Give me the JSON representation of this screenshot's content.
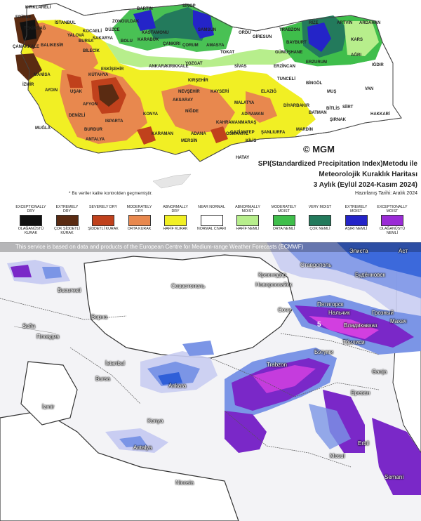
{
  "top": {
    "cities": [
      "KIRKLARELİ",
      "EDİRNE",
      "TEKİRDAĞ",
      "İSTANBUL",
      "KOCAELİ",
      "YALOVA",
      "SAKARYA",
      "DÜZCE",
      "ZONGULDAK",
      "BARTIN",
      "KASTAMONU",
      "SİNOP",
      "SAMSUN",
      "ORDU",
      "GİRESUN",
      "TRABZON",
      "RİZE",
      "ARTVİN",
      "ARDAHAN",
      "KARS",
      "BAYBURT",
      "GÜMÜŞHANE",
      "ERZURUM",
      "AĞRI",
      "IĞDIR",
      "ERZİNCAN",
      "TUNCELİ",
      "BİNGÖL",
      "MUŞ",
      "VAN",
      "BİTLİS",
      "SİİRT",
      "HAKKARİ",
      "ŞIRNAK",
      "BATMAN",
      "DİYARBAKIR",
      "MARDİN",
      "ŞANLIURFA",
      "ADIYAMAN",
      "MALATYA",
      "ELAZIĞ",
      "SİVAS",
      "TOKAT",
      "AMASYA",
      "ÇORUM",
      "YOZGAT",
      "KIRIKKALE",
      "ANKARA",
      "ÇANKIRI",
      "KARABÜK",
      "BOLU",
      "BİLECİK",
      "BURSA",
      "BALIKESİR",
      "ÇANAKKALE",
      "MANİSA",
      "İZMİR",
      "AYDIN",
      "MUĞLA",
      "DENİZLİ",
      "UŞAK",
      "KÜTAHYA",
      "ESKİŞEHİR",
      "AFYON",
      "ISPARTA",
      "BURDUR",
      "ANTALYA",
      "KONYA",
      "KARAMAN",
      "MERSİN",
      "ADANA",
      "OSMANİYE",
      "HATAY",
      "KİLİS",
      "GAZİANTEP",
      "KAHRAMANMARAŞ",
      "NİĞDE",
      "AKSARAY",
      "NEVŞEHİR",
      "KIRŞEHİR",
      "KAYSERİ"
    ],
    "logo": "© MGM",
    "title_line1": "SPI(Standardized Precipitation Index)Metodu ile",
    "title_line2": "Meteorolojik Kuraklık Haritası",
    "title_line3": "3 Aylık (Eylül 2024-Kasım 2024)",
    "date": "Hazırlanış Tarihi: Aralık 2024",
    "note": "* Bu veriler kalite kontrolden geçmemiştir.",
    "legend": [
      {
        "en": "EXCEPTIONALLY DRY",
        "tr": "OLAĞANÜSTÜ KURAK",
        "color": "#111111"
      },
      {
        "en": "EXTREMELY DRY",
        "tr": "ÇOK ŞİDDETLİ KURAK",
        "color": "#5a2b12"
      },
      {
        "en": "SEVERELY DRY",
        "tr": "ŞİDDETLİ KURAK",
        "color": "#c0411c"
      },
      {
        "en": "MODERATELY DRY",
        "tr": "ORTA KURAK",
        "color": "#e8884e"
      },
      {
        "en": "ABNORMALLY DRY",
        "tr": "HAFİF KURAK",
        "color": "#f1ef24"
      },
      {
        "en": "NEAR NORMAL",
        "tr": "NORMAL CIVARI",
        "color": "#ffffff"
      },
      {
        "en": "ABNORMALLY MOIST",
        "tr": "HAFİF NEMLİ",
        "color": "#b7ee8c"
      },
      {
        "en": "MODERATELY MOIST",
        "tr": "ORTA NEMLİ",
        "color": "#3fbe4b"
      },
      {
        "en": "VERY MOIST",
        "tr": "ÇOK NEMLİ",
        "color": "#237a5c"
      },
      {
        "en": "EXTREMELY MOIST",
        "tr": "AŞIRI NEMLİ",
        "color": "#2424c8"
      },
      {
        "en": "EXCEPTIONALLY MOIST",
        "tr": "OLAĞANÜSTÜ NEMLİ",
        "color": "#9a2bd6"
      }
    ]
  },
  "bottom": {
    "banner": "This service is based on data and products of the European Centre for Medium-range Weather Forecasts (ECMWF)",
    "labels": [
      "Элиста",
      "Аст",
      "Ставрополь",
      "Краснодар",
      "Будённовск",
      "Новороссийск",
      "Севастополь",
      "Пятигорск",
      "Сочи",
      "Нальчик",
      "Грозный",
      "Владикавказ",
      "Махач",
      "Бэтуми",
      "Тбилиси",
      "Bucuresti",
      "Варна",
      "Sofia",
      "Пловдив",
      "İstanbul",
      "Bursa",
      "Ankara",
      "Ganja",
      "Ереван",
      "Antalya",
      "Nicosia",
      "Erbil",
      "Semani",
      "Mosul",
      "Trabzon",
      "İzmir",
      "Konya"
    ],
    "isoline_value": "5",
    "colors": {
      "sea": "#ffffff",
      "land": "#f3f3f6",
      "light": "#c9cdf2",
      "mid": "#7b95e6",
      "blue": "#2f5fd8",
      "purple": "#7a28c8",
      "magenta": "#d23fe0"
    }
  }
}
